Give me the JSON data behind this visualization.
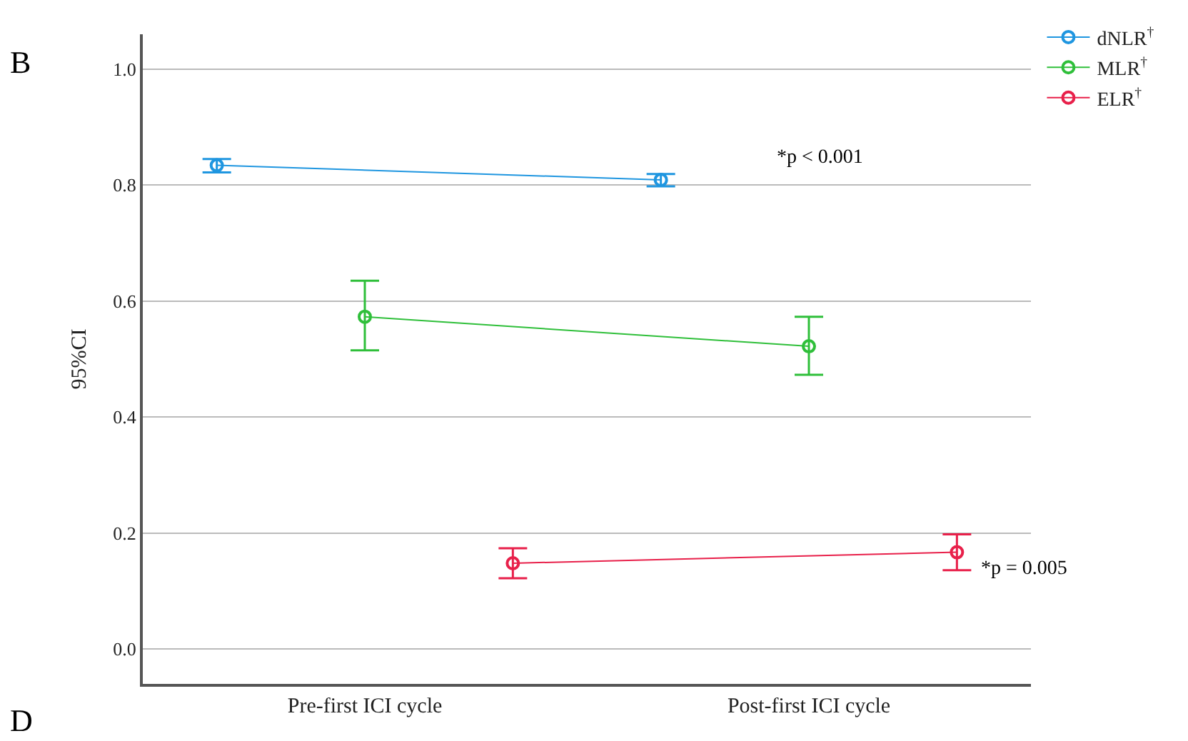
{
  "chart_data": {
    "type": "line",
    "ylabel": "95%CI",
    "categories": [
      "Pre-first ICI cycle",
      "Post-first ICI cycle"
    ],
    "series": [
      {
        "name": "dNLR$^{†}$",
        "color": "#1f96e0",
        "values": [
          0.834,
          0.809
        ],
        "errors": [
          [
            0.822,
            0.845
          ],
          [
            0.798,
            0.819
          ]
        ]
      },
      {
        "name": "MLR$^{†}$",
        "color": "#2fbf3a",
        "values": [
          0.573,
          0.522
        ],
        "errors": [
          [
            0.515,
            0.635
          ],
          [
            0.473,
            0.573
          ]
        ]
      },
      {
        "name": "ELR$^{†}$",
        "color": "#e8204a",
        "values": [
          0.148,
          0.167
        ],
        "errors": [
          [
            0.122,
            0.174
          ],
          [
            0.136,
            0.198
          ]
        ]
      }
    ],
    "ylim": [
      -0.06,
      1.06
    ],
    "yticks": [
      {
        "value": 0,
        "label": "0.0"
      },
      0.2,
      0.4,
      0.6,
      0.8,
      {
        "value": 1,
        "label": "1.0"
      }
    ],
    "grid": "y",
    "legend": "top right",
    "marker": "circle",
    "annotations": [
      "B",
      "D",
      "*p < 0.001",
      "*p = 0.005"
    ]
  }
}
